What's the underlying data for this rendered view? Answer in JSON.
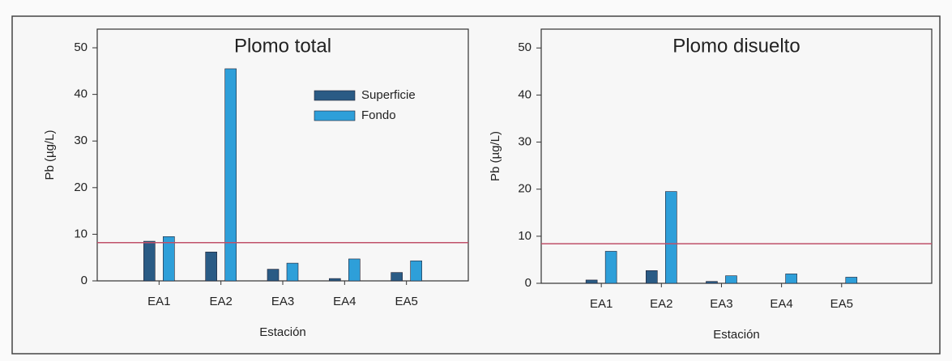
{
  "chart_data": [
    {
      "type": "bar",
      "title": "Plomo total",
      "x_label": "Estación",
      "y_label": "Pb (µg/L)",
      "categories": [
        "EA1",
        "EA2",
        "EA3",
        "EA4",
        "EA5"
      ],
      "series": [
        {
          "name": "Superficie",
          "color": "#2a5b85",
          "values": [
            8.5,
            6.2,
            2.5,
            0.5,
            1.8
          ]
        },
        {
          "name": "Fondo",
          "color": "#2e9fd9",
          "values": [
            9.5,
            45.5,
            3.8,
            4.7,
            4.3
          ]
        }
      ],
      "ylim": [
        0,
        54
      ],
      "yticks": [
        0,
        10,
        20,
        30,
        40,
        50
      ],
      "hline": 8.2,
      "hline_color": "#c0506a",
      "legend": "upper right"
    },
    {
      "type": "bar",
      "title": "Plomo disuelto",
      "x_label": "Estación",
      "y_label": "Pb (µg/L)",
      "categories": [
        "EA1",
        "EA2",
        "EA3",
        "EA4",
        "EA5"
      ],
      "series": [
        {
          "name": null,
          "color": "#2a5b85",
          "values": [
            0.7,
            2.7,
            0.4,
            0,
            0
          ]
        },
        {
          "name": null,
          "color": "#2e9fd9",
          "values": [
            6.8,
            19.5,
            1.6,
            2.0,
            1.3
          ]
        }
      ],
      "ylim": [
        0,
        54
      ],
      "yticks": [
        0,
        10,
        20,
        30,
        40,
        50
      ],
      "hline": 8.4,
      "hline_color": "#c0506a"
    }
  ]
}
